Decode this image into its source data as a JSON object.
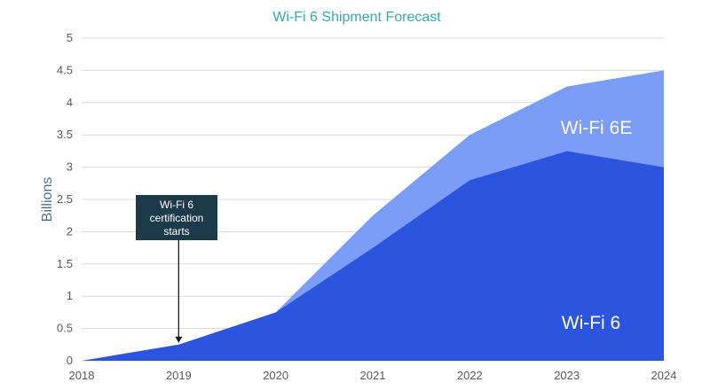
{
  "chart_data": {
    "type": "area",
    "stacked": true,
    "title": "Wi-Fi 6 Shipment Forecast",
    "ylabel": "Billions",
    "xlabel": "",
    "x": [
      2018,
      2019,
      2020,
      2021,
      2022,
      2023,
      2024
    ],
    "x_tick_labels": [
      "2018",
      "2019",
      "2020",
      "2021",
      "2022",
      "2023",
      "2024"
    ],
    "ylim": [
      0,
      5
    ],
    "y_tick_labels": [
      "0",
      "0.5",
      "1",
      "1.5",
      "2",
      "2.5",
      "3",
      "3.5",
      "4",
      "4.5",
      "5"
    ],
    "grid": true,
    "series": [
      {
        "name": "Wi-Fi 6",
        "values": [
          0,
          0.25,
          0.75,
          1.75,
          2.8,
          3.25,
          3.0
        ],
        "color": "#2b55de"
      },
      {
        "name": "Wi-Fi 6E",
        "values": [
          0,
          0,
          0,
          0.5,
          0.7,
          1.0,
          1.5
        ],
        "color": "#7b9cf7"
      }
    ],
    "annotation": {
      "lines": [
        "Wi-Fi 6",
        "certification",
        "starts"
      ],
      "x": 2019,
      "y": 0.25,
      "box_color": "#1c3a4a"
    }
  }
}
